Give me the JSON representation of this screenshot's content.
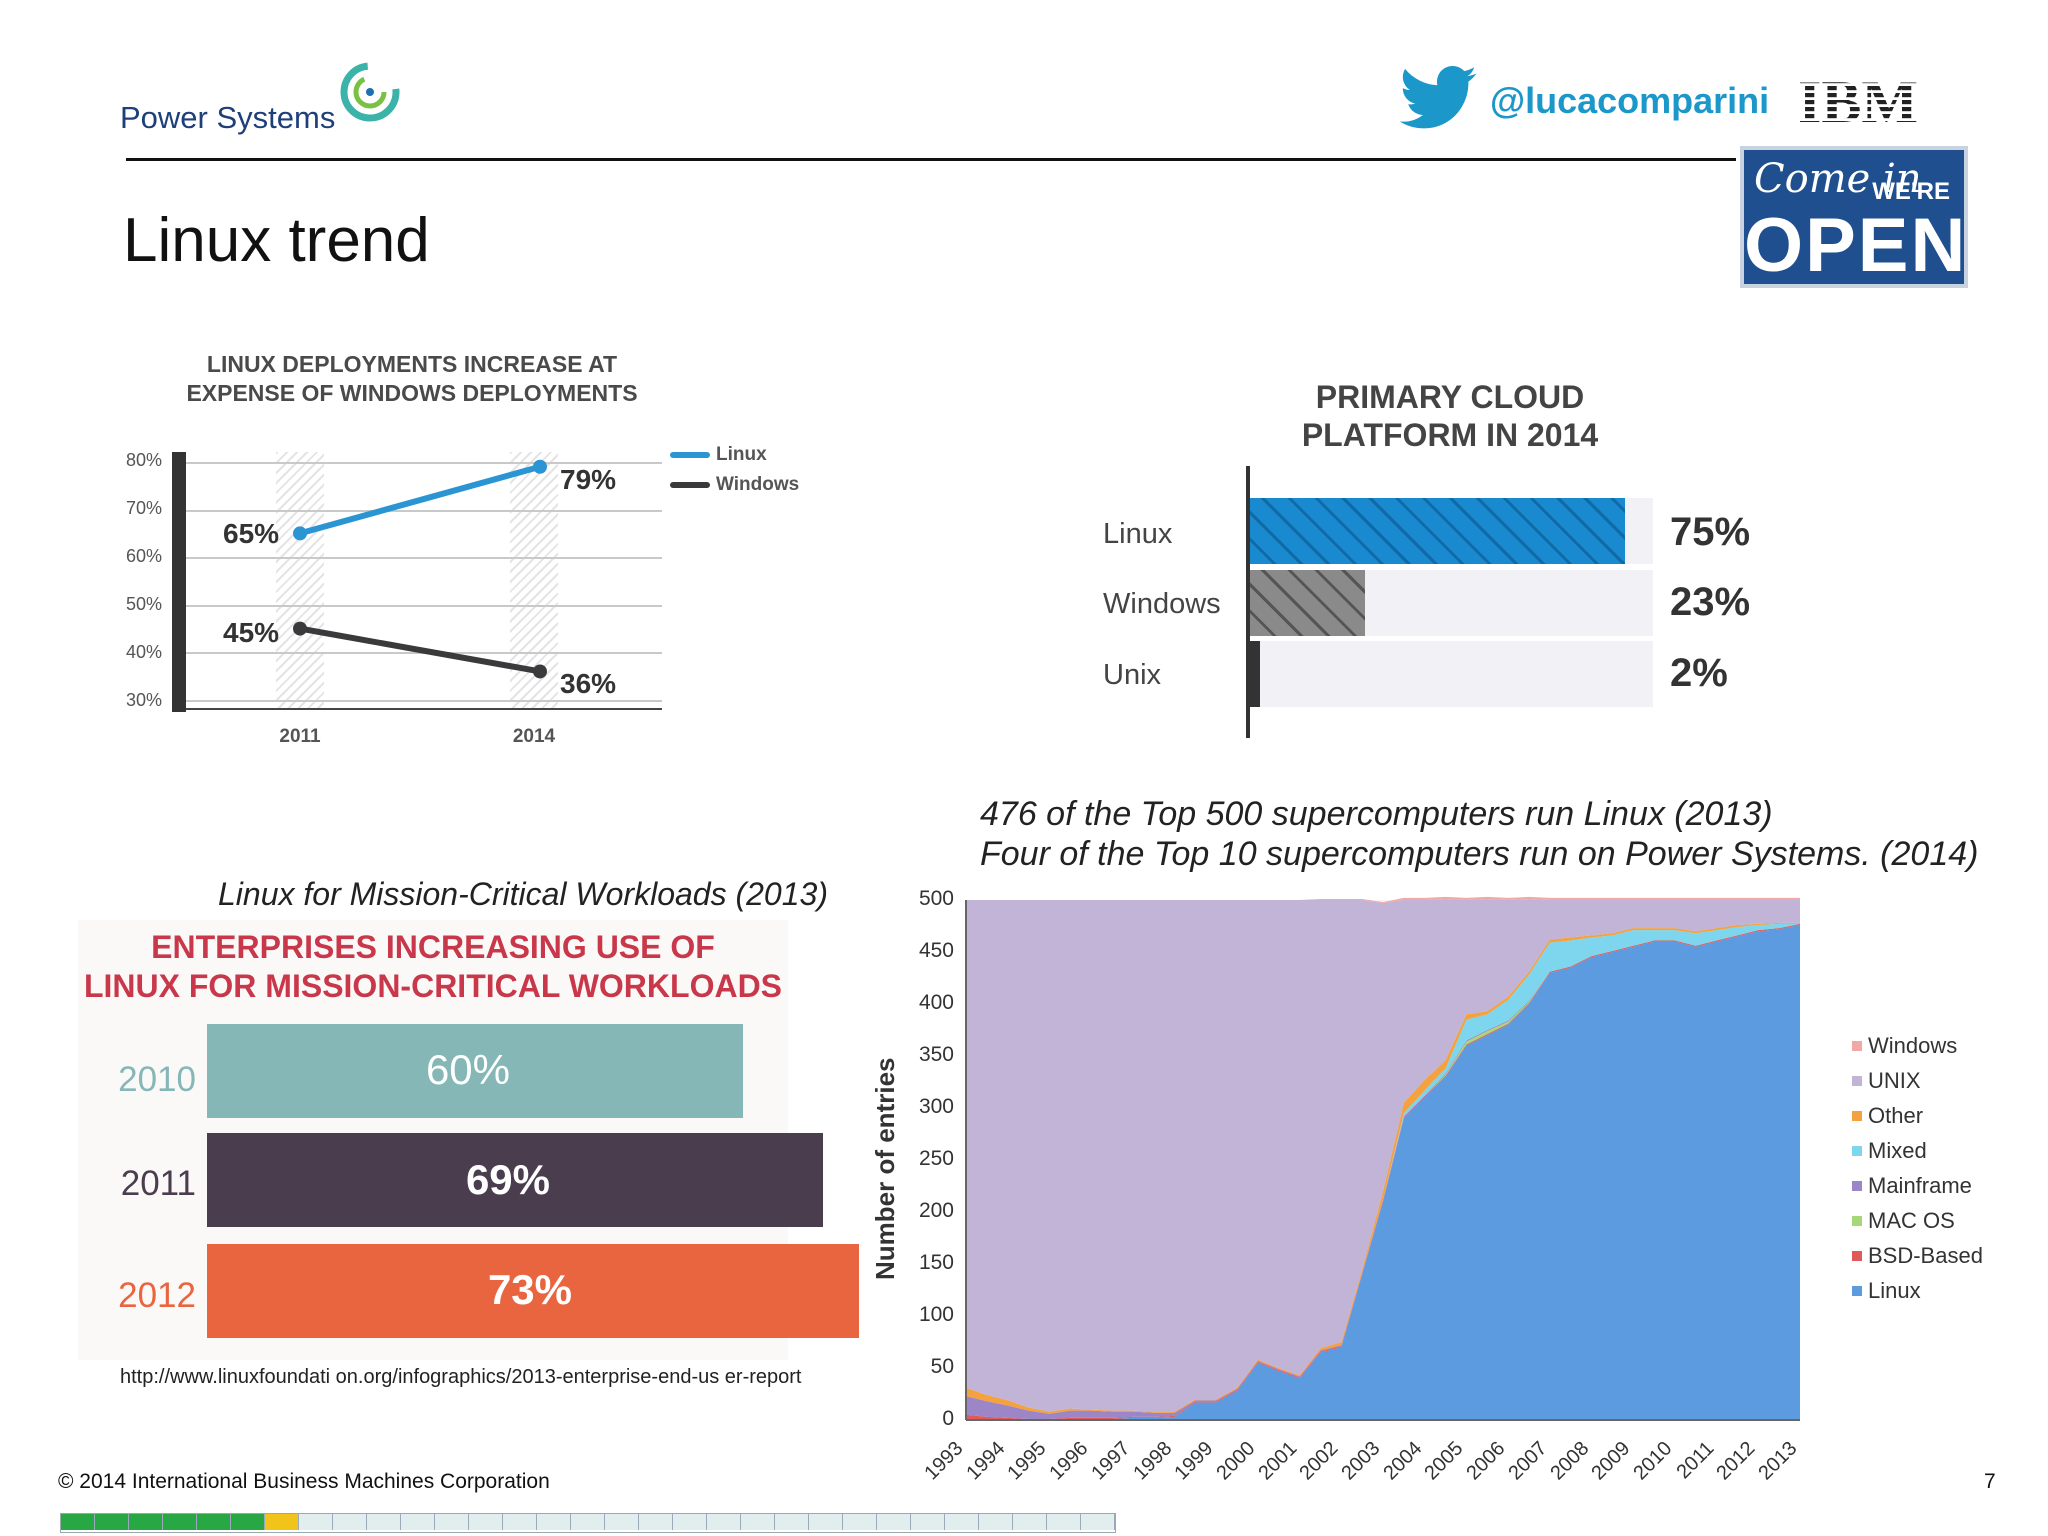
{
  "header": {
    "brand": "Power Systems",
    "handle": "@lucacomparini",
    "company": "IBM",
    "sign": {
      "come_in": "Come in",
      "were": "WE'RE",
      "open": "OPEN"
    }
  },
  "slide_title": "Linux trend",
  "chart1_heading": [
    "LINUX DEPLOYMENTS INCREASE AT",
    "EXPENSE OF WINDOWS DEPLOYMENTS"
  ],
  "chart3_heading": "Linux for Mission-Critical Workloads (2013)",
  "chart4_caption": [
    "476 of the Top 500 supercomputers run Linux (2013)",
    "Four of the Top 10 supercomputers run on Power Systems. (2014)"
  ],
  "source_url": "http://www.linuxfoundati on.org/infographics/2013-enterprise-end-us er-report",
  "footer": {
    "copyright": "© 2014  International   Business  Machines  Corporation",
    "page": "7",
    "progress_total": 31,
    "progress_done": 6,
    "progress_current": 7
  },
  "colors": {
    "linux_line": "#2b95d4",
    "windows_line": "#3a3a3c",
    "bar_2010": "#86b7b7",
    "bar_2011": "#4a3d4e",
    "bar_2012": "#e8653f"
  },
  "chart_data": [
    {
      "type": "line",
      "title": "LINUX DEPLOYMENTS INCREASE AT EXPENSE OF WINDOWS DEPLOYMENTS",
      "categories": [
        "2011",
        "2014"
      ],
      "series": [
        {
          "name": "Linux",
          "values": [
            65,
            79
          ],
          "labels": [
            "65%",
            "79%"
          ]
        },
        {
          "name": "Windows",
          "values": [
            45,
            36
          ],
          "labels": [
            "45%",
            "36%"
          ]
        }
      ],
      "yticks": [
        "80%",
        "70%",
        "60%",
        "50%",
        "40%",
        "30%"
      ],
      "ylim": [
        30,
        80
      ],
      "legend": "right"
    },
    {
      "type": "bar",
      "orientation": "horizontal",
      "title": "PRIMARY CLOUD PLATFORM IN 2014",
      "categories": [
        "Linux",
        "Windows",
        "Unix"
      ],
      "values": [
        75,
        23,
        2
      ],
      "labels": [
        "75%",
        "23%",
        "2%"
      ]
    },
    {
      "type": "bar",
      "orientation": "horizontal",
      "title": "ENTERPRISES INCREASING USE OF LINUX FOR MISSION-CRITICAL WORKLOADS",
      "title_lines": [
        "ENTERPRISES INCREASING USE OF",
        "LINUX FOR MISSION-CRITICAL WORKLOADS"
      ],
      "categories": [
        "2010",
        "2011",
        "2012"
      ],
      "values": [
        60,
        69,
        73
      ],
      "labels": [
        "60%",
        "69%",
        "73%"
      ]
    },
    {
      "type": "area",
      "stacked": true,
      "title": "476 of the Top 500 supercomputers run Linux (2013)",
      "ylabel": "Number of entries",
      "ylim": [
        0,
        500
      ],
      "yticks": [
        "0",
        "50",
        "100",
        "150",
        "200",
        "250",
        "300",
        "350",
        "400",
        "450",
        "500"
      ],
      "x": [
        "1993",
        "1994",
        "1995",
        "1996",
        "1997",
        "1998",
        "1999",
        "2000",
        "2001",
        "2002",
        "2003",
        "2004",
        "2005",
        "2006",
        "2007",
        "2008",
        "2009",
        "2010",
        "2011",
        "2012",
        "2013"
      ],
      "x_values": [
        1993.5,
        1994,
        1994.5,
        1995,
        1995.5,
        1996,
        1996.5,
        1997,
        1997.5,
        1998,
        1998.5,
        1999,
        1999.5,
        2000,
        2000.5,
        2001,
        2001.5,
        2002,
        2002.5,
        2003,
        2003.5,
        2004,
        2004.5,
        2005,
        2005.5,
        2006,
        2006.5,
        2007,
        2007.5,
        2008,
        2008.5,
        2009,
        2009.5,
        2010,
        2010.5,
        2011,
        2011.5,
        2012,
        2012.5,
        2013,
        2013.5
      ],
      "series": [
        {
          "name": "Linux",
          "values": [
            0,
            0,
            0,
            0,
            0,
            1,
            1,
            1,
            2,
            2,
            3,
            17,
            17,
            28,
            55,
            47,
            40,
            65,
            70,
            140,
            210,
            290,
            310,
            330,
            360,
            370,
            380,
            400,
            430,
            435,
            445,
            450,
            455,
            460,
            460,
            455,
            460,
            465,
            470,
            472,
            476
          ]
        },
        {
          "name": "BSD-Based",
          "values": [
            5,
            3,
            2,
            1,
            1,
            1,
            1,
            1,
            1,
            1,
            1,
            1,
            1,
            1,
            1,
            1,
            1,
            1,
            1,
            1,
            1,
            1,
            1,
            1,
            1,
            1,
            1,
            1,
            1,
            1,
            1,
            1,
            1,
            1,
            1,
            1,
            1,
            1,
            1,
            1,
            1
          ]
        },
        {
          "name": "MAC OS",
          "values": [
            0,
            0,
            0,
            0,
            0,
            0,
            0,
            0,
            0,
            0,
            0,
            0,
            0,
            0,
            0,
            0,
            0,
            0,
            0,
            0,
            0,
            0,
            0,
            1,
            3,
            3,
            2,
            1,
            0,
            0,
            0,
            0,
            0,
            0,
            0,
            0,
            0,
            0,
            0,
            0,
            0
          ]
        },
        {
          "name": "Mainframe",
          "values": [
            18,
            15,
            12,
            8,
            5,
            7,
            7,
            6,
            5,
            4,
            3,
            1,
            1,
            1,
            1,
            1,
            1,
            1,
            1,
            1,
            1,
            1,
            1,
            1,
            1,
            1,
            1,
            1,
            0,
            0,
            0,
            0,
            0,
            0,
            0,
            0,
            0,
            0,
            0,
            0,
            0
          ]
        },
        {
          "name": "Mixed",
          "values": [
            0,
            0,
            0,
            0,
            0,
            0,
            0,
            0,
            0,
            0,
            0,
            0,
            0,
            0,
            0,
            0,
            0,
            0,
            0,
            0,
            0,
            3,
            5,
            5,
            20,
            15,
            20,
            25,
            28,
            25,
            18,
            15,
            15,
            10,
            10,
            12,
            10,
            8,
            5,
            4,
            0
          ]
        },
        {
          "name": "Other",
          "values": [
            8,
            6,
            5,
            3,
            2,
            2,
            1,
            1,
            1,
            1,
            1,
            1,
            1,
            1,
            1,
            1,
            1,
            2,
            3,
            3,
            8,
            10,
            10,
            8,
            5,
            3,
            3,
            3,
            3,
            3,
            2,
            2,
            2,
            2,
            2,
            2,
            2,
            2,
            1,
            1,
            1
          ]
        },
        {
          "name": "UNIX",
          "values": [
            469,
            476,
            481,
            488,
            492,
            489,
            490,
            491,
            491,
            492,
            492,
            480,
            480,
            469,
            442,
            450,
            457,
            431,
            425,
            355,
            277,
            195,
            173,
            155,
            110,
            108,
            93,
            70,
            38,
            36,
            34,
            32,
            27,
            27,
            27,
            30,
            27,
            24,
            23,
            22,
            22
          ]
        },
        {
          "name": "Windows",
          "values": [
            0,
            0,
            0,
            0,
            0,
            0,
            0,
            0,
            0,
            0,
            0,
            0,
            0,
            0,
            0,
            0,
            0,
            1,
            1,
            1,
            1,
            2,
            2,
            2,
            2,
            2,
            2,
            2,
            2,
            2,
            2,
            2,
            2,
            2,
            2,
            2,
            2,
            2,
            2,
            2,
            2
          ]
        }
      ],
      "legend": [
        "Windows",
        "UNIX",
        "Other",
        "Mixed",
        "Mainframe",
        "MAC OS",
        "BSD-Based",
        "Linux"
      ],
      "legend_colors": [
        "#f1a8a8",
        "#c2b4d6",
        "#f4a23f",
        "#7ed6ee",
        "#9d86c7",
        "#a6d87a",
        "#e05a5a",
        "#5d9be0"
      ]
    }
  ]
}
